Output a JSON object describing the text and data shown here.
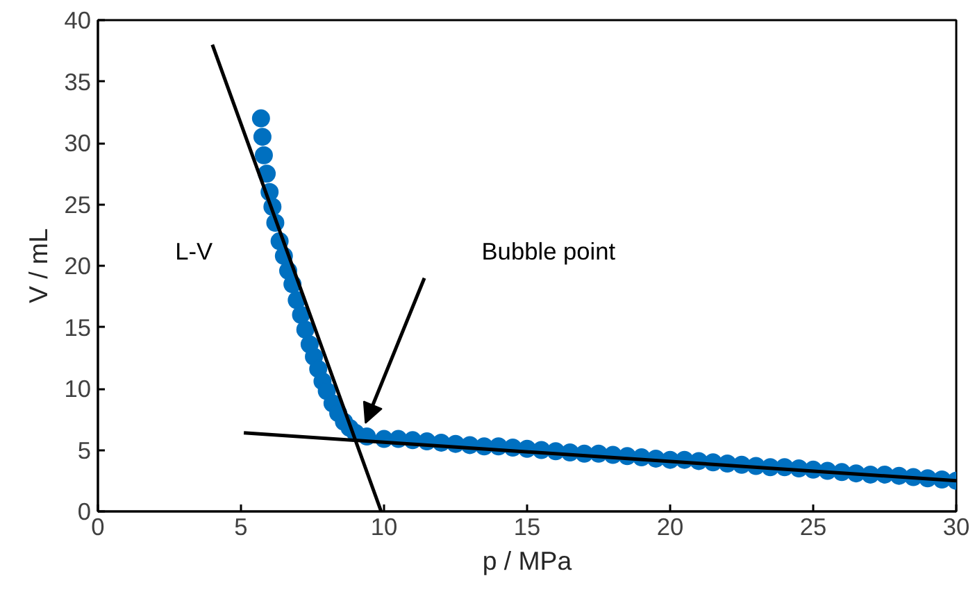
{
  "chart_data": {
    "type": "scatter",
    "xlabel": "p / MPa",
    "ylabel": "V / mL",
    "xlim": [
      0,
      30
    ],
    "ylim": [
      0,
      40
    ],
    "xticks": [
      0,
      5,
      10,
      15,
      20,
      25,
      30
    ],
    "yticks": [
      0,
      5,
      10,
      15,
      20,
      25,
      30,
      35,
      40
    ],
    "grid": false,
    "marker": "circle",
    "series": [
      {
        "color": "#0070c0",
        "x": [
          5.7,
          5.75,
          5.8,
          5.9,
          6.0,
          6.1,
          6.2,
          6.35,
          6.5,
          6.65,
          6.8,
          6.95,
          7.1,
          7.25,
          7.4,
          7.55,
          7.7,
          7.85,
          8.0,
          8.2,
          8.4,
          8.6,
          8.8,
          9.0,
          9.4,
          10,
          10.5,
          11,
          11.5,
          12,
          12.5,
          13,
          13.5,
          14,
          14.5,
          15,
          15.5,
          16,
          16.5,
          17,
          17.5,
          18,
          18.5,
          19,
          19.5,
          20,
          20.5,
          21,
          21.5,
          22,
          22.5,
          23,
          23.5,
          24,
          24.5,
          25,
          25.5,
          26,
          26.5,
          27,
          27.5,
          28,
          28.5,
          29,
          29.5,
          30
        ],
        "values": [
          32,
          30.5,
          29,
          27.5,
          26,
          24.8,
          23.5,
          22,
          20.8,
          19.6,
          18.5,
          17.2,
          16,
          14.8,
          13.6,
          12.6,
          11.6,
          10.6,
          9.8,
          8.8,
          8,
          7.3,
          6.8,
          6.4,
          6.1,
          5.9,
          5.9,
          5.8,
          5.7,
          5.6,
          5.5,
          5.4,
          5.3,
          5.3,
          5.2,
          5.1,
          5.0,
          4.9,
          4.8,
          4.7,
          4.7,
          4.6,
          4.5,
          4.4,
          4.3,
          4.2,
          4.2,
          4.1,
          4.0,
          3.9,
          3.8,
          3.7,
          3.6,
          3.6,
          3.5,
          3.4,
          3.3,
          3.2,
          3.1,
          3.0,
          3.0,
          2.9,
          2.8,
          2.7,
          2.6,
          2.5
        ]
      },
      {
        "type": "line",
        "color": "#000000",
        "line_style": "solid",
        "marker": "none",
        "x": [
          4.0,
          9.9
        ],
        "values": [
          38.0,
          0
        ]
      },
      {
        "type": "line",
        "color": "#000000",
        "line_style": "solid",
        "marker": "none",
        "x": [
          5.1,
          30
        ],
        "values": [
          6.4,
          2.5
        ]
      }
    ],
    "annotations": [
      "L-V",
      "Bubble point"
    ]
  }
}
